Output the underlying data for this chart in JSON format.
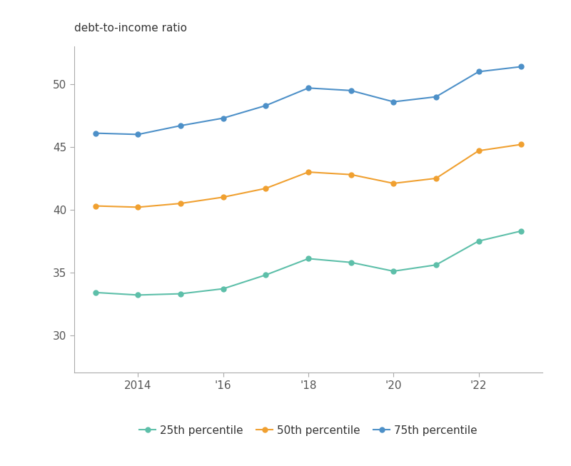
{
  "title": "debt-to-income ratio",
  "x_years": [
    2013,
    2014,
    2015,
    2016,
    2017,
    2018,
    2019,
    2020,
    2021,
    2022,
    2023
  ],
  "p25": [
    33.4,
    33.2,
    33.3,
    33.7,
    34.8,
    36.1,
    35.8,
    35.1,
    35.6,
    37.5,
    38.3
  ],
  "p50": [
    40.3,
    40.2,
    40.5,
    41.0,
    41.7,
    43.0,
    42.8,
    42.1,
    42.5,
    44.7,
    45.2
  ],
  "p75": [
    46.1,
    46.0,
    46.7,
    47.3,
    48.3,
    49.7,
    49.5,
    48.6,
    49.0,
    51.0,
    51.4
  ],
  "color_p25": "#5dbfa9",
  "color_p50": "#f0a030",
  "color_p75": "#4d90c8",
  "legend_labels": [
    "25th percentile",
    "50th percentile",
    "75th percentile"
  ],
  "xtick_positions": [
    2014,
    2016,
    2018,
    2020,
    2022
  ],
  "xtick_labels": [
    "2014",
    "'16",
    "'18",
    "'20",
    "'22"
  ],
  "ytick_positions": [
    30,
    35,
    40,
    45,
    50
  ],
  "ylim": [
    27,
    53
  ],
  "xlim": [
    2012.5,
    2023.5
  ],
  "background_color": "#ffffff",
  "marker_size": 5,
  "linewidth": 1.5,
  "spine_color": "#aaaaaa",
  "tick_color": "#555555",
  "title_fontsize": 11,
  "tick_fontsize": 11,
  "legend_fontsize": 11
}
